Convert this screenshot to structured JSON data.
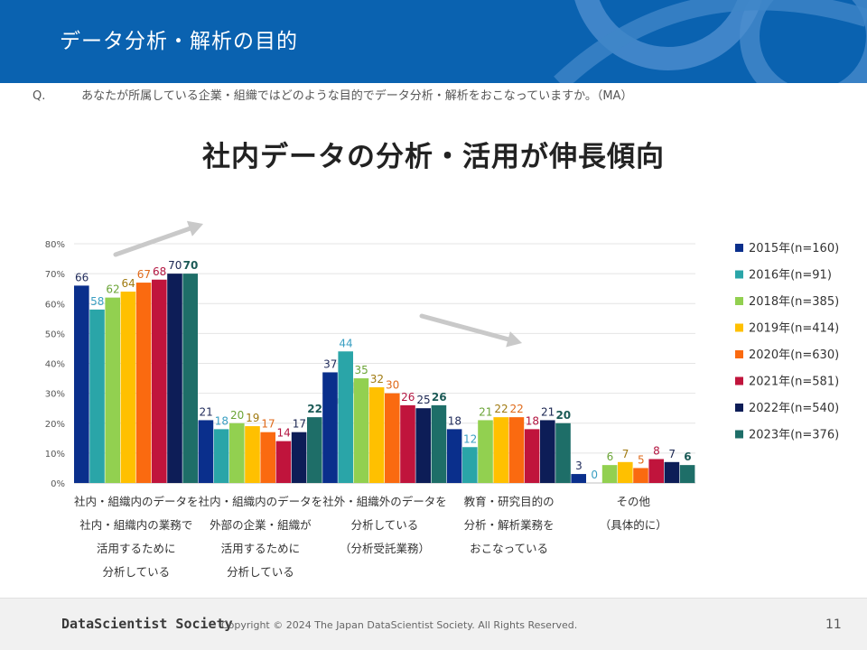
{
  "header": {
    "title": "データ分析・解析の目的"
  },
  "question": {
    "label": "Q.",
    "text": "あなたが所属している企業・組織ではどのような目的でデータ分析・解析をおこなっていますか。（MA）"
  },
  "headline": "社内データの分析・活用が伸長傾向",
  "footer": {
    "logo": "DataScientist Society",
    "copyright": "Copyright © 2024  The Japan DataScientist Society. All Rights Reserved.",
    "page": "11"
  },
  "chart_data": {
    "type": "bar",
    "title": "",
    "xlabel": "",
    "ylabel": "",
    "ylim": [
      0,
      80
    ],
    "yticks": [
      "0%",
      "10%",
      "20%",
      "30%",
      "40%",
      "50%",
      "60%",
      "70%",
      "80%"
    ],
    "grid": true,
    "legend_position": "right",
    "categories": [
      [
        "社内・組織内のデータを",
        "社内・組織内の業務で",
        "活用するために",
        "分析している"
      ],
      [
        "社内・組織内のデータを",
        "外部の企業・組織が",
        "活用するために",
        "分析している"
      ],
      [
        "社外・組織外のデータを",
        "分析している",
        "（分析受託業務）"
      ],
      [
        "教育・研究目的の",
        "分析・解析業務を",
        "おこなっている"
      ],
      [
        "その他",
        "（具体的に）"
      ]
    ],
    "series": [
      {
        "name": "2015年(n=160)",
        "color": "#0a2f8c",
        "label_color": "#1f2a5a",
        "values": [
          66,
          21,
          37,
          18,
          3
        ]
      },
      {
        "name": "2016年(n=91)",
        "color": "#2aa5a8",
        "label_color": "#3a9fc2",
        "values": [
          58,
          18,
          44,
          12,
          0
        ]
      },
      {
        "name": "2018年(n=385)",
        "color": "#92d050",
        "label_color": "#6aa436",
        "values": [
          62,
          20,
          35,
          21,
          6
        ]
      },
      {
        "name": "2019年(n=414)",
        "color": "#ffc000",
        "label_color": "#a07a10",
        "values": [
          64,
          19,
          32,
          22,
          7
        ]
      },
      {
        "name": "2020年(n=630)",
        "color": "#fa6a10",
        "label_color": "#e06a1a",
        "values": [
          67,
          17,
          30,
          22,
          5
        ]
      },
      {
        "name": "2021年(n=581)",
        "color": "#c0143c",
        "label_color": "#b31540",
        "values": [
          68,
          14,
          26,
          18,
          8
        ]
      },
      {
        "name": "2022年(n=540)",
        "color": "#0d1d57",
        "label_color": "#1a2550",
        "values": [
          70,
          17,
          25,
          21,
          7
        ]
      },
      {
        "name": "2023年(n=376)",
        "color": "#1e6e68",
        "label_color": "#1b5a56",
        "values": [
          70,
          22,
          26,
          20,
          6
        ]
      }
    ]
  }
}
